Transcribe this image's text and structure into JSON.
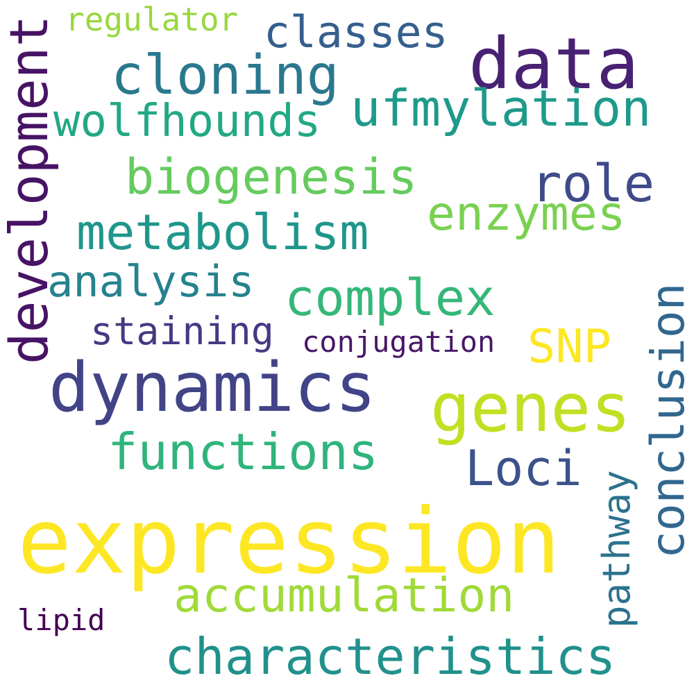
{
  "words": {
    "regulator": "regulator",
    "classes": "classes",
    "data": "data",
    "cloning": "cloning",
    "ufmylation": "ufmylation",
    "wolfhounds": "wolfhounds",
    "biogenesis": "biogenesis",
    "role": "role",
    "enzymes": "enzymes",
    "metabolism": "metabolism",
    "development": "development",
    "analysis": "analysis",
    "complex": "complex",
    "staining": "staining",
    "conjugation": "conjugation",
    "snp": "SNP",
    "conclusion": "conclusion",
    "dynamics": "dynamics",
    "genes": "genes",
    "functions": "functions",
    "loci": "Loci",
    "pathway": "pathway",
    "expression": "expression",
    "accumulation": "accumulation",
    "lipid": "lipid",
    "characteristics": "characteristics"
  },
  "colors": {
    "background": "#ffffff",
    "palette": "viridis"
  }
}
